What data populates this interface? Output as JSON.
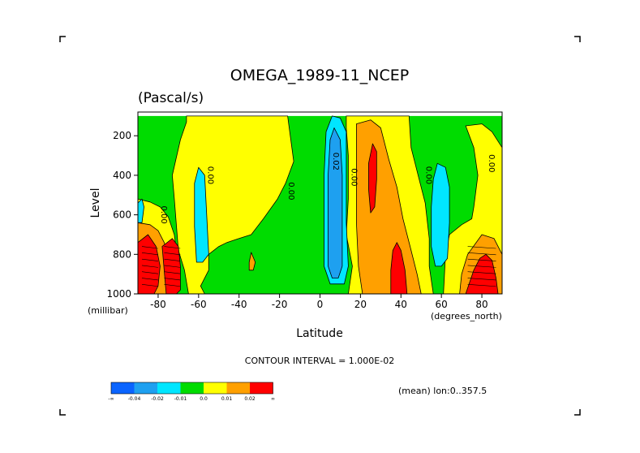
{
  "chart_data": {
    "type": "heatmap",
    "title": "OMEGA_1989-11_NCEP",
    "units": "(Pascal/s)",
    "xlabel": "Latitude",
    "ylabel": "Level",
    "y_unit_label": "(millibar)",
    "x_unit_label": "(degrees_north)",
    "xlim": [
      -90,
      90
    ],
    "ylim": [
      1000,
      100
    ],
    "x_ticks": [
      -80,
      -60,
      -40,
      -20,
      0,
      20,
      40,
      60,
      80
    ],
    "x_tick_labels": [
      "-80",
      "-60",
      "-40",
      "-20",
      "0",
      "20",
      "40",
      "60",
      "80"
    ],
    "y_ticks": [
      200,
      400,
      600,
      800,
      1000
    ],
    "y_tick_labels": [
      "200",
      "400",
      "600",
      "800",
      "1000"
    ],
    "contour_interval_text": "CONTOUR INTERVAL = 1.000E-02",
    "mean_text": "(mean) lon:0..357.5",
    "colorbar": {
      "colors": [
        "#0a64ff",
        "#1ea0f0",
        "#00e6ff",
        "#00dc00",
        "#ffff00",
        "#ffa000",
        "#ff0000"
      ],
      "labels": [
        "-∞",
        "-0.04",
        "-0.02",
        "-0.01",
        "0.0",
        "0.01",
        "0.02",
        "∞"
      ]
    },
    "contour_labels": [
      {
        "text": "0.00",
        "lat": -80,
        "lev": 600
      },
      {
        "text": "0.00",
        "lat": -57,
        "lev": 400
      },
      {
        "text": "0.00",
        "lat": -17,
        "lev": 480
      },
      {
        "text": "0.02",
        "lat": 5,
        "lev": 330
      },
      {
        "text": "0.00",
        "lat": 14,
        "lev": 410
      },
      {
        "text": "0.00",
        "lat": 51,
        "lev": 400
      },
      {
        "text": "0.00",
        "lat": 82,
        "lev": 340
      }
    ],
    "regions": [
      {
        "name": "green-background",
        "level": "-0.01 to 0.0",
        "color": "#00dc00",
        "points": [
          [
            -90,
            100
          ],
          [
            90,
            100
          ],
          [
            90,
            1000
          ],
          [
            -90,
            1000
          ]
        ]
      },
      {
        "name": "yellow-band-sh-tropics",
        "level": "0.0 to 0.01",
        "color": "#ffff00",
        "points": [
          [
            -66,
            100
          ],
          [
            -16,
            100
          ],
          [
            -13,
            330
          ],
          [
            -17,
            440
          ],
          [
            -21,
            520
          ],
          [
            -28,
            620
          ],
          [
            -34,
            700
          ],
          [
            -40,
            720
          ],
          [
            -46,
            740
          ],
          [
            -50,
            760
          ],
          [
            -55,
            800
          ],
          [
            -55,
            880
          ],
          [
            -59,
            960
          ],
          [
            -57,
            1000
          ],
          [
            -65,
            1000
          ],
          [
            -67,
            880
          ],
          [
            -70,
            780
          ],
          [
            -72,
            520
          ],
          [
            -73,
            400
          ],
          [
            -69,
            220
          ],
          [
            -66,
            130
          ]
        ]
      },
      {
        "name": "yellow-band-south-pole",
        "level": "0.0 to 0.01",
        "color": "#ffff00",
        "points": [
          [
            -90,
            520
          ],
          [
            -84,
            535
          ],
          [
            -79,
            560
          ],
          [
            -75,
            610
          ],
          [
            -72,
            700
          ],
          [
            -71,
            780
          ],
          [
            -72,
            860
          ],
          [
            -74,
            940
          ],
          [
            -74,
            1000
          ],
          [
            -90,
            1000
          ]
        ]
      },
      {
        "name": "yellow-band-nh-subtropics",
        "level": "0.0 to 0.01",
        "color": "#ffff00",
        "points": [
          [
            13,
            100
          ],
          [
            44,
            100
          ],
          [
            45,
            260
          ],
          [
            49,
            420
          ],
          [
            52,
            540
          ],
          [
            54,
            720
          ],
          [
            54,
            860
          ],
          [
            56,
            1000
          ],
          [
            14,
            1000
          ],
          [
            16,
            860
          ],
          [
            13,
            700
          ],
          [
            14,
            520
          ],
          [
            14,
            300
          ],
          [
            13,
            160
          ]
        ]
      },
      {
        "name": "yellow-band-north-pole",
        "level": "0.0 to 0.01",
        "color": "#ffff00",
        "points": [
          [
            72,
            150
          ],
          [
            76,
            260
          ],
          [
            78,
            400
          ],
          [
            76,
            560
          ],
          [
            75,
            620
          ],
          [
            70,
            650
          ],
          [
            64,
            700
          ],
          [
            62,
            800
          ],
          [
            61,
            1000
          ],
          [
            90,
            1000
          ],
          [
            90,
            260
          ],
          [
            85,
            180
          ],
          [
            80,
            140
          ]
        ]
      },
      {
        "name": "orange-south-pole",
        "level": "0.01 to 0.02",
        "color": "#ffa000",
        "points": [
          [
            -90,
            640
          ],
          [
            -84,
            650
          ],
          [
            -80,
            680
          ],
          [
            -77,
            740
          ],
          [
            -74,
            830
          ],
          [
            -74,
            920
          ],
          [
            -75,
            1000
          ],
          [
            -90,
            1000
          ]
        ]
      },
      {
        "name": "orange-nh-subtropics",
        "level": "0.01 to 0.02",
        "color": "#ffa000",
        "points": [
          [
            18,
            140
          ],
          [
            25,
            120
          ],
          [
            30,
            160
          ],
          [
            34,
            320
          ],
          [
            38,
            460
          ],
          [
            41,
            620
          ],
          [
            45,
            780
          ],
          [
            48,
            900
          ],
          [
            50,
            1000
          ],
          [
            21,
            1000
          ],
          [
            19,
            860
          ],
          [
            18,
            640
          ],
          [
            18,
            400
          ],
          [
            18,
            220
          ]
        ]
      },
      {
        "name": "orange-north-pole",
        "level": "0.01 to 0.02",
        "color": "#ffa000",
        "points": [
          [
            80,
            700
          ],
          [
            86,
            720
          ],
          [
            90,
            800
          ],
          [
            90,
            1000
          ],
          [
            69,
            1000
          ],
          [
            70,
            900
          ],
          [
            73,
            800
          ]
        ]
      },
      {
        "name": "red-south-pole-1",
        "level": "> 0.02",
        "color": "#ff0000",
        "points": [
          [
            -90,
            740
          ],
          [
            -85,
            700
          ],
          [
            -81,
            760
          ],
          [
            -79,
            860
          ],
          [
            -80,
            960
          ],
          [
            -82,
            1000
          ],
          [
            -90,
            1000
          ]
        ]
      },
      {
        "name": "red-south-pole-2",
        "level": "> 0.02",
        "color": "#ff0000",
        "points": [
          [
            -78,
            760
          ],
          [
            -73,
            720
          ],
          [
            -70,
            760
          ],
          [
            -69,
            860
          ],
          [
            -69,
            980
          ],
          [
            -71,
            1000
          ],
          [
            -76,
            1000
          ],
          [
            -77,
            880
          ]
        ]
      },
      {
        "name": "red-nh-subtropics-upper",
        "level": "> 0.02",
        "color": "#ff0000",
        "points": [
          [
            26,
            240
          ],
          [
            28,
            280
          ],
          [
            28,
            420
          ],
          [
            27,
            560
          ],
          [
            25,
            590
          ],
          [
            24,
            470
          ],
          [
            24,
            340
          ]
        ]
      },
      {
        "name": "red-nh-subtropics-lower",
        "level": "> 0.02",
        "color": "#ff0000",
        "points": [
          [
            38,
            740
          ],
          [
            40,
            780
          ],
          [
            42,
            880
          ],
          [
            43,
            1000
          ],
          [
            35,
            1000
          ],
          [
            35,
            880
          ],
          [
            36,
            780
          ]
        ]
      },
      {
        "name": "red-north-pole",
        "level": "> 0.02",
        "color": "#ff0000",
        "points": [
          [
            82,
            800
          ],
          [
            85,
            830
          ],
          [
            87,
            920
          ],
          [
            88,
            1000
          ],
          [
            72,
            1000
          ],
          [
            76,
            880
          ],
          [
            79,
            820
          ]
        ]
      },
      {
        "name": "cyan-sh-descent",
        "level": "-0.02 to -0.01",
        "color": "#00e6ff",
        "points": [
          [
            -60,
            360
          ],
          [
            -57,
            400
          ],
          [
            -56,
            600
          ],
          [
            -55,
            800
          ],
          [
            -58,
            840
          ],
          [
            -61,
            840
          ],
          [
            -62,
            660
          ],
          [
            -62,
            440
          ]
        ]
      },
      {
        "name": "cyan-equator",
        "level": "-0.02 to -0.01",
        "color": "#00e6ff",
        "points": [
          [
            6,
            100
          ],
          [
            10,
            110
          ],
          [
            13,
            180
          ],
          [
            13,
            400
          ],
          [
            13,
            640
          ],
          [
            14,
            860
          ],
          [
            12,
            950
          ],
          [
            5,
            950
          ],
          [
            2,
            860
          ],
          [
            2,
            640
          ],
          [
            2,
            400
          ],
          [
            3,
            180
          ]
        ]
      },
      {
        "name": "blue-equator",
        "level": "-0.04 to -0.02",
        "color": "#1ea0f0",
        "points": [
          [
            7,
            160
          ],
          [
            10,
            220
          ],
          [
            11,
            400
          ],
          [
            11,
            640
          ],
          [
            11,
            860
          ],
          [
            9,
            920
          ],
          [
            6,
            920
          ],
          [
            4,
            860
          ],
          [
            4,
            640
          ],
          [
            4,
            400
          ],
          [
            5,
            220
          ]
        ]
      },
      {
        "name": "cyan-nh-midlat",
        "level": "-0.02 to -0.01",
        "color": "#00e6ff",
        "points": [
          [
            58,
            340
          ],
          [
            62,
            360
          ],
          [
            64,
            460
          ],
          [
            64,
            640
          ],
          [
            63,
            820
          ],
          [
            60,
            860
          ],
          [
            57,
            860
          ],
          [
            55,
            760
          ],
          [
            55,
            560
          ],
          [
            56,
            420
          ]
        ]
      },
      {
        "name": "cyan-south-edge",
        "level": "-0.02 to -0.01",
        "color": "#00e6ff",
        "points": [
          [
            -90,
            540
          ],
          [
            -88,
            520
          ],
          [
            -87,
            560
          ],
          [
            -88,
            640
          ],
          [
            -90,
            640
          ]
        ]
      },
      {
        "name": "orange-blob-small",
        "level": "0.01 to 0.02",
        "color": "#ffa000",
        "points": [
          [
            -34,
            790
          ],
          [
            -32,
            840
          ],
          [
            -33,
            880
          ],
          [
            -35,
            880
          ],
          [
            -35,
            840
          ]
        ]
      }
    ]
  }
}
